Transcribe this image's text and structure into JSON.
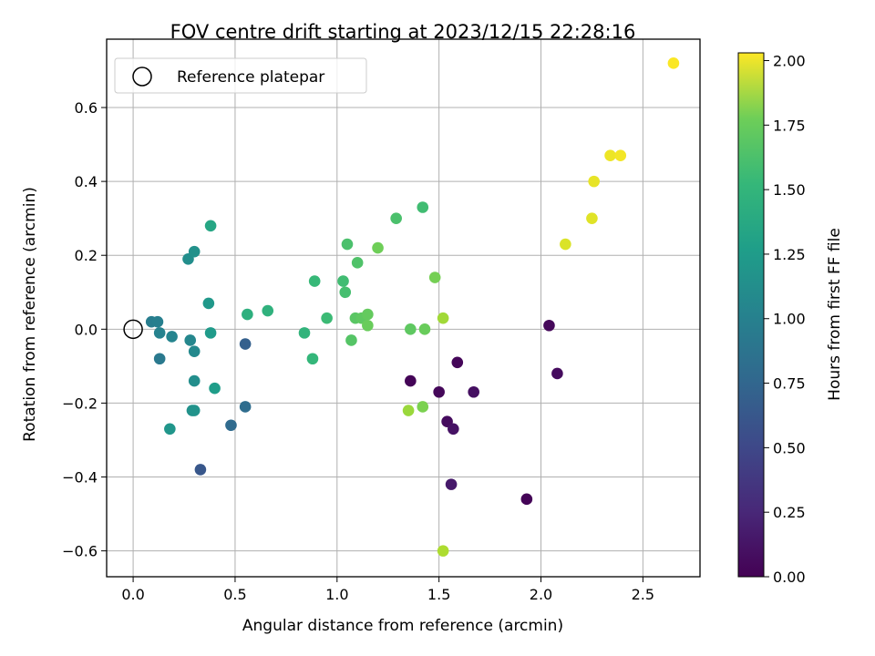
{
  "chart_data": {
    "type": "scatter",
    "title": "FOV centre drift starting at 2023/12/15 22:28:16",
    "xlabel": "Angular distance from reference (arcmin)",
    "ylabel": "Rotation from reference (arcmin)",
    "xlim": [
      -0.13,
      2.78
    ],
    "ylim": [
      -0.67,
      0.785
    ],
    "xticks": [
      0.0,
      0.5,
      1.0,
      1.5,
      2.0,
      2.5
    ],
    "yticks": [
      -0.6,
      -0.4,
      -0.2,
      0.0,
      0.2,
      0.4,
      0.6
    ],
    "xtick_labels": [
      "0.0",
      "0.5",
      "1.0",
      "1.5",
      "2.0",
      "2.5"
    ],
    "ytick_labels": [
      "−0.6",
      "−0.4",
      "−0.2",
      "0.0",
      "0.2",
      "0.4",
      "0.6"
    ],
    "grid": true,
    "legend": {
      "placement": "upper-left",
      "entries": [
        "Reference platepar"
      ]
    },
    "reference_point": {
      "x": 0.0,
      "y": 0.0,
      "label": "Reference platepar"
    },
    "colorbar": {
      "label": "Hours from first FF file",
      "range": [
        0.0,
        2.03
      ],
      "ticks": [
        0.0,
        0.25,
        0.5,
        0.75,
        1.0,
        1.25,
        1.5,
        1.75,
        2.0
      ],
      "tick_labels": [
        "0.00",
        "0.25",
        "0.50",
        "0.75",
        "1.00",
        "1.25",
        "1.50",
        "1.75",
        "2.00"
      ],
      "colormap": "viridis"
    },
    "points": [
      {
        "x": 1.36,
        "y": -0.14,
        "c": 0.02
      },
      {
        "x": 1.5,
        "y": -0.17,
        "c": 0.04
      },
      {
        "x": 1.54,
        "y": -0.25,
        "c": 0.06
      },
      {
        "x": 1.59,
        "y": -0.09,
        "c": 0.03
      },
      {
        "x": 1.67,
        "y": -0.17,
        "c": 0.08
      },
      {
        "x": 1.57,
        "y": -0.27,
        "c": 0.1
      },
      {
        "x": 1.56,
        "y": -0.42,
        "c": 0.14
      },
      {
        "x": 1.93,
        "y": -0.46,
        "c": 0.02
      },
      {
        "x": 2.04,
        "y": 0.01,
        "c": 0.04
      },
      {
        "x": 2.08,
        "y": -0.12,
        "c": 0.06
      },
      {
        "x": 0.33,
        "y": -0.38,
        "c": 0.55
      },
      {
        "x": 0.48,
        "y": -0.26,
        "c": 0.7
      },
      {
        "x": 0.55,
        "y": -0.21,
        "c": 0.72
      },
      {
        "x": 0.55,
        "y": -0.04,
        "c": 0.62
      },
      {
        "x": 0.13,
        "y": -0.08,
        "c": 0.82
      },
      {
        "x": 0.09,
        "y": 0.02,
        "c": 0.86
      },
      {
        "x": 0.12,
        "y": 0.02,
        "c": 0.88
      },
      {
        "x": 0.13,
        "y": -0.01,
        "c": 0.9
      },
      {
        "x": 0.19,
        "y": -0.02,
        "c": 0.92
      },
      {
        "x": 0.28,
        "y": -0.03,
        "c": 0.94
      },
      {
        "x": 0.3,
        "y": -0.06,
        "c": 0.96
      },
      {
        "x": 0.3,
        "y": -0.14,
        "c": 1.0
      },
      {
        "x": 0.29,
        "y": -0.22,
        "c": 1.02
      },
      {
        "x": 0.3,
        "y": -0.22,
        "c": 1.04
      },
      {
        "x": 0.18,
        "y": -0.27,
        "c": 1.06
      },
      {
        "x": 0.27,
        "y": 0.19,
        "c": 1.0
      },
      {
        "x": 0.3,
        "y": 0.21,
        "c": 1.02
      },
      {
        "x": 0.38,
        "y": 0.28,
        "c": 1.2
      },
      {
        "x": 0.37,
        "y": 0.07,
        "c": 1.08
      },
      {
        "x": 0.38,
        "y": -0.01,
        "c": 1.1
      },
      {
        "x": 0.4,
        "y": -0.16,
        "c": 1.12
      },
      {
        "x": 0.56,
        "y": 0.04,
        "c": 1.28
      },
      {
        "x": 0.66,
        "y": 0.05,
        "c": 1.3
      },
      {
        "x": 0.84,
        "y": -0.01,
        "c": 1.32
      },
      {
        "x": 0.88,
        "y": -0.08,
        "c": 1.34
      },
      {
        "x": 0.89,
        "y": 0.13,
        "c": 1.36
      },
      {
        "x": 0.95,
        "y": 0.03,
        "c": 1.38
      },
      {
        "x": 1.03,
        "y": 0.13,
        "c": 1.4
      },
      {
        "x": 1.04,
        "y": 0.1,
        "c": 1.42
      },
      {
        "x": 1.05,
        "y": 0.23,
        "c": 1.44
      },
      {
        "x": 1.1,
        "y": 0.18,
        "c": 1.46
      },
      {
        "x": 1.07,
        "y": -0.03,
        "c": 1.48
      },
      {
        "x": 1.09,
        "y": 0.03,
        "c": 1.5
      },
      {
        "x": 1.12,
        "y": 0.03,
        "c": 1.52
      },
      {
        "x": 1.15,
        "y": 0.04,
        "c": 1.54
      },
      {
        "x": 1.15,
        "y": 0.01,
        "c": 1.56
      },
      {
        "x": 1.2,
        "y": 0.22,
        "c": 1.58
      },
      {
        "x": 1.29,
        "y": 0.3,
        "c": 1.44
      },
      {
        "x": 1.42,
        "y": 0.33,
        "c": 1.4
      },
      {
        "x": 1.36,
        "y": 0.0,
        "c": 1.52
      },
      {
        "x": 1.43,
        "y": 0.0,
        "c": 1.56
      },
      {
        "x": 1.48,
        "y": 0.14,
        "c": 1.6
      },
      {
        "x": 1.42,
        "y": -0.21,
        "c": 1.62
      },
      {
        "x": 1.35,
        "y": -0.22,
        "c": 1.72
      },
      {
        "x": 1.52,
        "y": 0.03,
        "c": 1.74
      },
      {
        "x": 1.52,
        "y": -0.6,
        "c": 1.78
      },
      {
        "x": 2.12,
        "y": 0.23,
        "c": 1.92
      },
      {
        "x": 2.25,
        "y": 0.3,
        "c": 1.94
      },
      {
        "x": 2.26,
        "y": 0.4,
        "c": 1.96
      },
      {
        "x": 2.34,
        "y": 0.47,
        "c": 1.98
      },
      {
        "x": 2.39,
        "y": 0.47,
        "c": 2.0
      },
      {
        "x": 2.65,
        "y": 0.72,
        "c": 2.02
      }
    ]
  }
}
